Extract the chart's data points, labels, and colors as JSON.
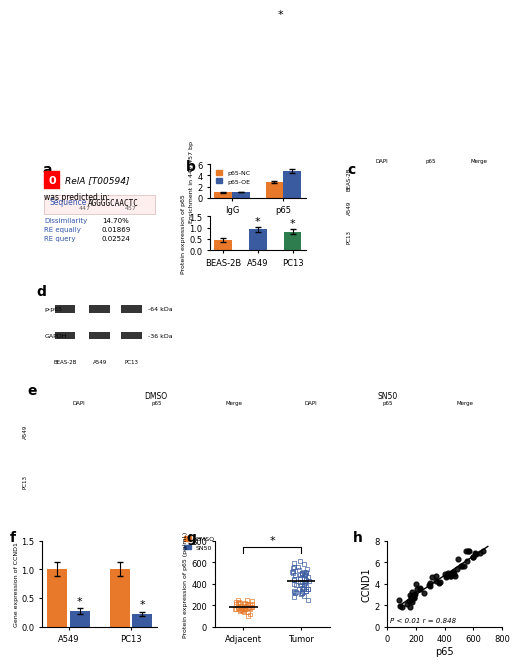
{
  "panel_a": {
    "label": "a",
    "rela_text": "RelA [T00594]",
    "predicted_text": "was predicted in:",
    "sequence_label": "Sequence",
    "sequence": "AGGGGCAACTC",
    "pos_447": "447",
    "pos_457": "457",
    "dissimilarity": "Dissimilarity       14.70%",
    "re_equally": "RE equally          0.01869",
    "re_query": "RE query            0.02524"
  },
  "panel_b_top": {
    "label": "b",
    "ylabel": "Enrichment in 447/457 bp",
    "categories": [
      "IgG",
      "p65"
    ],
    "p65NC": [
      1.0,
      2.8
    ],
    "p65OE": [
      1.05,
      4.8
    ],
    "p65NC_err": [
      0.08,
      0.25
    ],
    "p65OE_err": [
      0.06,
      0.35
    ],
    "colors": {
      "p65NC": "#E8792A",
      "p65OE": "#3A5BA0"
    },
    "ylim": [
      0,
      6
    ],
    "yticks": [
      0,
      2,
      4,
      6
    ],
    "star_pos": "p65",
    "legend": [
      "p65-NC",
      "p65-OE"
    ]
  },
  "panel_b_bottom": {
    "ylabel": "Protein expression of p65",
    "categories": [
      "BEAS-2B",
      "A549",
      "PC13"
    ],
    "values": [
      0.45,
      0.92,
      0.82
    ],
    "errors": [
      0.07,
      0.12,
      0.1
    ],
    "colors": [
      "#E8792A",
      "#3A5BA0",
      "#2E7D4E"
    ],
    "ylim": [
      0,
      1.5
    ],
    "yticks": [
      0.0,
      0.5,
      1.0,
      1.5
    ],
    "star_indices": [
      1,
      2
    ]
  },
  "panel_f": {
    "label": "f",
    "ylabel": "Gene expression of CCND1",
    "groups": [
      "A549",
      "PC13"
    ],
    "DMSO": [
      1.0,
      1.0
    ],
    "SN50": [
      0.27,
      0.22
    ],
    "DMSO_err": [
      0.12,
      0.12
    ],
    "SN50_err": [
      0.05,
      0.04
    ],
    "colors": {
      "DMSO": "#E8792A",
      "SN50": "#3A5BA0"
    },
    "ylim": [
      0,
      1.5
    ],
    "yticks": [
      0.0,
      0.5,
      1.0,
      1.5
    ],
    "legend": [
      "DMSO",
      "SN50"
    ]
  },
  "panel_g": {
    "label": "g",
    "ylabel": "Protein expression of p65 (pg/mL)",
    "categories": [
      "Adjacent",
      "Tumor"
    ],
    "adjacent_mean": 185,
    "adjacent_std": 30,
    "tumor_mean": 415,
    "tumor_std": 80,
    "ylim": [
      0,
      800
    ],
    "yticks": [
      0,
      200,
      400,
      600,
      800
    ],
    "n_adjacent": 40,
    "n_tumor": 60,
    "colors": {
      "adjacent": "#E8792A",
      "tumor": "#3A5BA0"
    }
  },
  "panel_h": {
    "label": "h",
    "xlabel": "p65",
    "ylabel": "CCND1",
    "annotation": "P < 0.01 r = 0.848",
    "xlim": [
      0,
      800
    ],
    "ylim": [
      0,
      8
    ],
    "xticks": [
      0,
      200,
      400,
      600,
      800
    ],
    "yticks": [
      0,
      2,
      4,
      6,
      8
    ],
    "r": 0.848,
    "slope": 0.009,
    "intercept": 0.5
  },
  "bg_color": "#ffffff",
  "panel_label_fontsize": 10,
  "axis_fontsize": 7,
  "tick_fontsize": 6
}
